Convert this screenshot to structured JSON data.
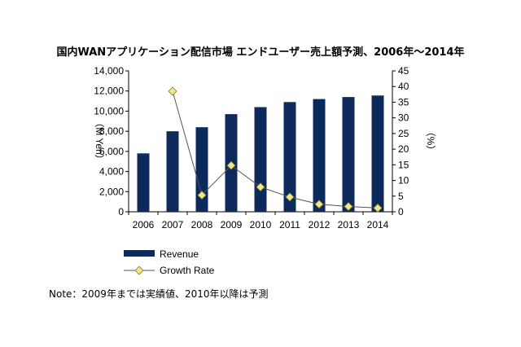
{
  "chart_data": {
    "type": "bar+line",
    "title": "国内WANアプリケーション配信市場 エンドユーザー売上額予測、2006年～2014年",
    "categories": [
      "2006",
      "2007",
      "2008",
      "2009",
      "2010",
      "2011",
      "2012",
      "2013",
      "2014"
    ],
    "series": [
      {
        "name": "Revenue",
        "type": "bar",
        "axis": "left",
        "color": "#0d2a5c",
        "values": [
          5800,
          8000,
          8400,
          9700,
          10400,
          10900,
          11200,
          11400,
          11550
        ]
      },
      {
        "name": "Growth Rate",
        "type": "line",
        "axis": "right",
        "color": "#f0e68c",
        "values": [
          null,
          38.5,
          5.3,
          14.8,
          7.9,
          4.7,
          2.4,
          1.7,
          1.2
        ]
      }
    ],
    "ylabel": "（M Yen）",
    "y2label": "（%）",
    "ylim": [
      0,
      14000
    ],
    "y2lim": [
      0,
      45
    ],
    "yticks": [
      "0",
      "2,000",
      "4,000",
      "6,000",
      "8,000",
      "10,000",
      "12,000",
      "14,000"
    ],
    "y2ticks": [
      "0",
      "5",
      "10",
      "15",
      "20",
      "25",
      "30",
      "35",
      "40",
      "45"
    ],
    "grid": false,
    "legend": "bottom-left"
  },
  "note": "Note：2009年までは実績値、2010年以降は予測"
}
